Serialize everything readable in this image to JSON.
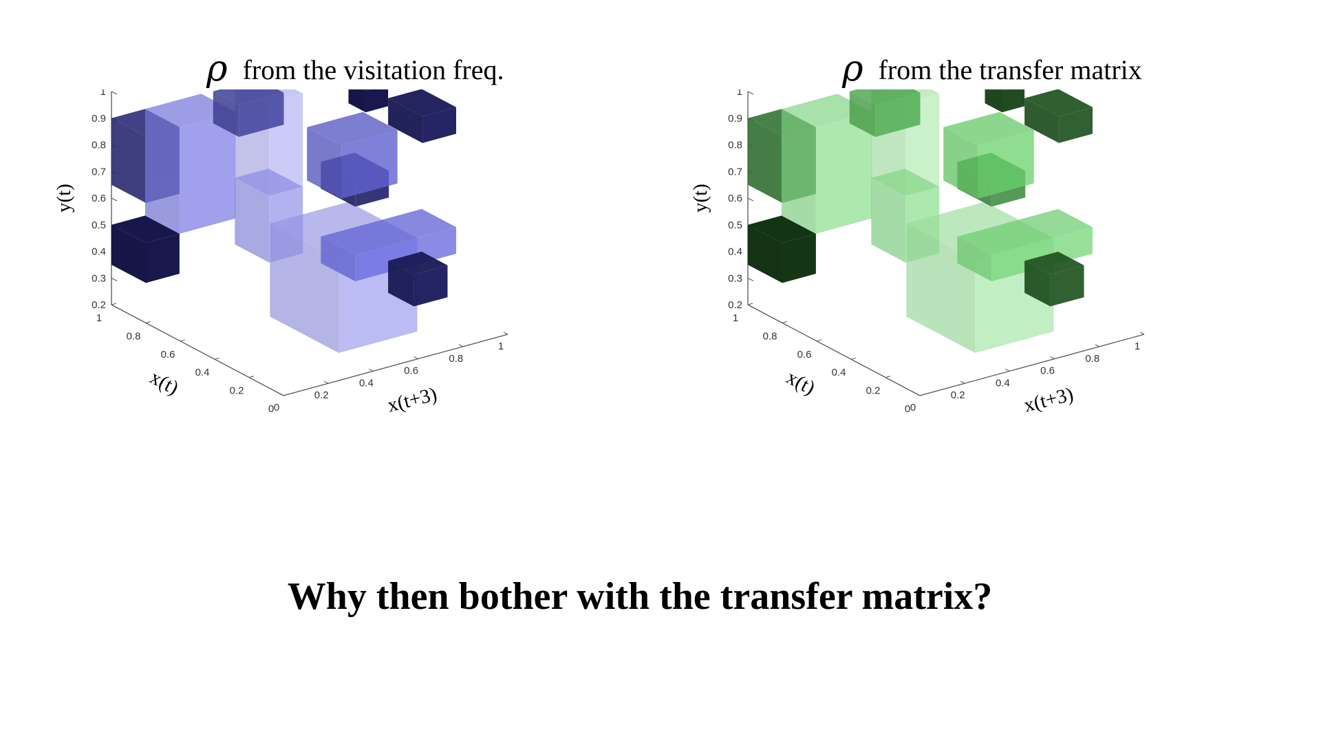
{
  "chart_data": [
    {
      "type": "scatter",
      "title_symbol": "ρ",
      "title": "from the visitation freq.",
      "xlabel": "x(t+3)",
      "ylabel": "x(t)",
      "zlabel": "y(t)",
      "xlim": [
        0,
        1
      ],
      "ylim": [
        0,
        1
      ],
      "zlim": [
        0.2,
        1
      ],
      "x_ticks": [
        "0",
        "0.2",
        "0.4",
        "0.6",
        "0.8",
        "1"
      ],
      "y_ticks": [
        "0",
        "0.2",
        "0.4",
        "0.6",
        "0.8",
        "1"
      ],
      "z_ticks": [
        "0.2",
        "0.3",
        "0.4",
        "0.5",
        "0.6",
        "0.7",
        "0.8",
        "0.9",
        "1"
      ],
      "color_light": "#c8c8fb",
      "color_mid": "#6b6be0",
      "color_dark": "#0a0a3c",
      "cells": [
        {
          "x": 0.55,
          "y": 1.0,
          "z": 0.55,
          "w": 0.15,
          "d": 0.2,
          "h": 0.35,
          "level": 0.15
        },
        {
          "x": 0.55,
          "y": 1.0,
          "z": 0.3,
          "w": 0.15,
          "d": 0.2,
          "h": 0.25,
          "level": 0.3
        },
        {
          "x": 0.0,
          "y": 1.0,
          "z": 0.65,
          "w": 0.15,
          "d": 0.2,
          "h": 0.25,
          "level": 0.8
        },
        {
          "x": 0.15,
          "y": 1.0,
          "z": 0.5,
          "w": 0.25,
          "d": 0.2,
          "h": 0.4,
          "level": 0.4
        },
        {
          "x": 0.0,
          "y": 1.0,
          "z": 0.35,
          "w": 0.15,
          "d": 0.2,
          "h": 0.15,
          "level": 0.95
        },
        {
          "x": 0.4,
          "y": 0.6,
          "z": 0.2,
          "w": 0.35,
          "d": 0.4,
          "h": 0.35,
          "level": 0.25
        },
        {
          "x": 0.55,
          "y": 0.5,
          "z": 0.68,
          "w": 0.15,
          "d": 0.2,
          "h": 0.1,
          "level": 0.85
        },
        {
          "x": 0.85,
          "y": 0.5,
          "z": 0.85,
          "w": 0.15,
          "d": 0.2,
          "h": 0.1,
          "level": 0.9
        },
        {
          "x": 0.85,
          "y": 0.5,
          "z": 0.22,
          "w": 0.15,
          "d": 0.15,
          "h": 0.12,
          "level": 0.9
        },
        {
          "x": 0.55,
          "y": 0.5,
          "z": 0.4,
          "w": 0.45,
          "d": 0.2,
          "h": 0.1,
          "level": 0.5
        },
        {
          "x": 0.45,
          "y": 0.45,
          "z": 0.75,
          "w": 0.25,
          "d": 0.2,
          "h": 0.2,
          "level": 0.55
        },
        {
          "x": 0.3,
          "y": 0.8,
          "z": 0.88,
          "w": 0.2,
          "d": 0.15,
          "h": 0.12,
          "level": 0.7
        },
        {
          "x": 0.75,
          "y": 0.6,
          "z": 0.92,
          "w": 0.1,
          "d": 0.1,
          "h": 0.08,
          "level": 0.95
        }
      ]
    },
    {
      "type": "scatter",
      "title_symbol": "ρ",
      "title": "from the transfer matrix",
      "xlabel": "x(t+3)",
      "ylabel": "x(t)",
      "zlabel": "y(t)",
      "xlim": [
        0,
        1
      ],
      "ylim": [
        0,
        1
      ],
      "zlim": [
        0.2,
        1
      ],
      "x_ticks": [
        "0",
        "0.2",
        "0.4",
        "0.6",
        "0.8",
        "1"
      ],
      "y_ticks": [
        "0",
        "0.2",
        "0.4",
        "0.6",
        "0.8",
        "1"
      ],
      "z_ticks": [
        "0.2",
        "0.3",
        "0.4",
        "0.5",
        "0.6",
        "0.7",
        "0.8",
        "0.9",
        "1"
      ],
      "color_light": "#c9f5c9",
      "color_mid": "#5fce62",
      "color_dark": "#082208",
      "cells": [
        {
          "x": 0.55,
          "y": 1.0,
          "z": 0.55,
          "w": 0.15,
          "d": 0.2,
          "h": 0.35,
          "level": 0.15
        },
        {
          "x": 0.55,
          "y": 1.0,
          "z": 0.3,
          "w": 0.15,
          "d": 0.2,
          "h": 0.25,
          "level": 0.3
        },
        {
          "x": 0.0,
          "y": 1.0,
          "z": 0.65,
          "w": 0.15,
          "d": 0.2,
          "h": 0.25,
          "level": 0.75
        },
        {
          "x": 0.15,
          "y": 1.0,
          "z": 0.5,
          "w": 0.25,
          "d": 0.2,
          "h": 0.4,
          "level": 0.3
        },
        {
          "x": 0.0,
          "y": 1.0,
          "z": 0.35,
          "w": 0.15,
          "d": 0.2,
          "h": 0.15,
          "level": 0.95
        },
        {
          "x": 0.4,
          "y": 0.6,
          "z": 0.2,
          "w": 0.35,
          "d": 0.4,
          "h": 0.35,
          "level": 0.2
        },
        {
          "x": 0.55,
          "y": 0.5,
          "z": 0.68,
          "w": 0.15,
          "d": 0.2,
          "h": 0.1,
          "level": 0.7
        },
        {
          "x": 0.85,
          "y": 0.5,
          "z": 0.85,
          "w": 0.15,
          "d": 0.2,
          "h": 0.1,
          "level": 0.85
        },
        {
          "x": 0.85,
          "y": 0.5,
          "z": 0.22,
          "w": 0.15,
          "d": 0.15,
          "h": 0.12,
          "level": 0.85
        },
        {
          "x": 0.55,
          "y": 0.5,
          "z": 0.4,
          "w": 0.45,
          "d": 0.2,
          "h": 0.1,
          "level": 0.4
        },
        {
          "x": 0.45,
          "y": 0.45,
          "z": 0.75,
          "w": 0.25,
          "d": 0.2,
          "h": 0.2,
          "level": 0.45
        },
        {
          "x": 0.3,
          "y": 0.8,
          "z": 0.88,
          "w": 0.2,
          "d": 0.15,
          "h": 0.12,
          "level": 0.6
        },
        {
          "x": 0.75,
          "y": 0.6,
          "z": 0.92,
          "w": 0.1,
          "d": 0.1,
          "h": 0.08,
          "level": 0.9
        }
      ]
    }
  ],
  "bottom_question": "Why then bother with the transfer matrix?"
}
